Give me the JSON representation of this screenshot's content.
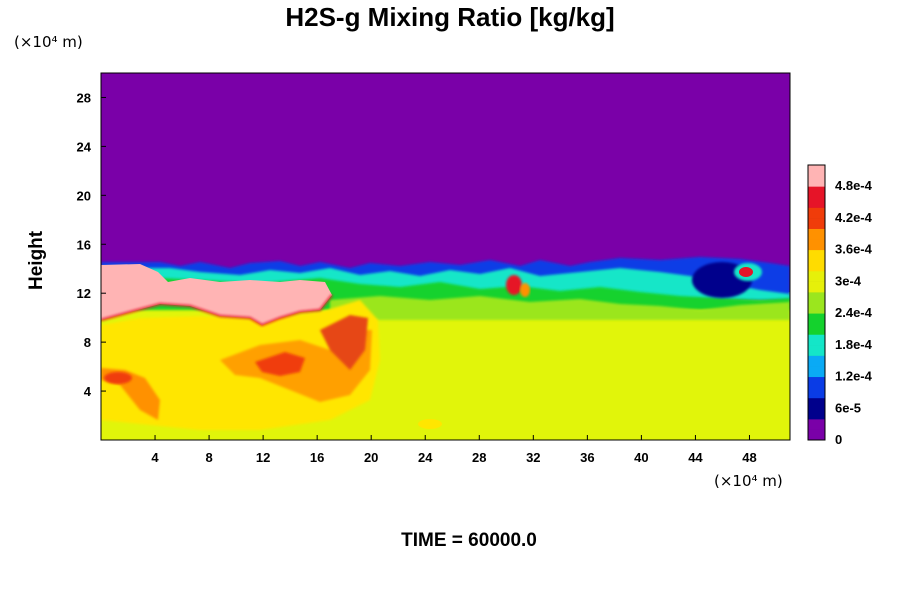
{
  "chart_data": {
    "type": "heatmap",
    "title": "H2S-g Mixing Ratio [kg/kg]",
    "ylabel": "Height",
    "x_unit": "(×10⁴ m)",
    "y_unit": "(×10⁴ m)",
    "footer": "TIME = 60000.0",
    "xlim": [
      0,
      51
    ],
    "ylim": [
      0,
      30
    ],
    "x_ticks": [
      4,
      8,
      12,
      16,
      20,
      24,
      28,
      32,
      36,
      40,
      44,
      48
    ],
    "x_tick_labels": [
      "4",
      "8",
      "12",
      "16",
      "20",
      "24",
      "28",
      "32",
      "36",
      "40",
      "44",
      "48"
    ],
    "y_ticks": [
      4,
      8,
      12,
      16,
      20,
      24,
      28
    ],
    "y_tick_labels": [
      "4",
      "8",
      "12",
      "16",
      "20",
      "24",
      "28"
    ],
    "colorbar": {
      "range": [
        0,
        0.00052
      ],
      "tick_values": [
        0,
        6e-05,
        0.00012,
        0.00018,
        0.00024,
        0.0003,
        0.00036,
        0.00042,
        0.00048
      ],
      "tick_labels": [
        "0",
        "6e-5",
        "1.2e-4",
        "1.8e-4",
        "2.4e-4",
        "3e-4",
        "3.6e-4",
        "4.2e-4",
        "4.8e-4"
      ],
      "colors": [
        "#7a00a8",
        "#00008c",
        "#0a3ce6",
        "#0aaaf5",
        "#14e6c8",
        "#14d22d",
        "#9be61e",
        "#e6f00a",
        "#ffdc00",
        "#ff9100",
        "#f03c0a",
        "#e61428",
        "#ffb4b4"
      ]
    },
    "field_description_regions": {
      "background_upper": 0,
      "background_lower": 0.00033,
      "plume_core_left": 0.0005,
      "plume_hot_spot": 0.00044
    }
  }
}
